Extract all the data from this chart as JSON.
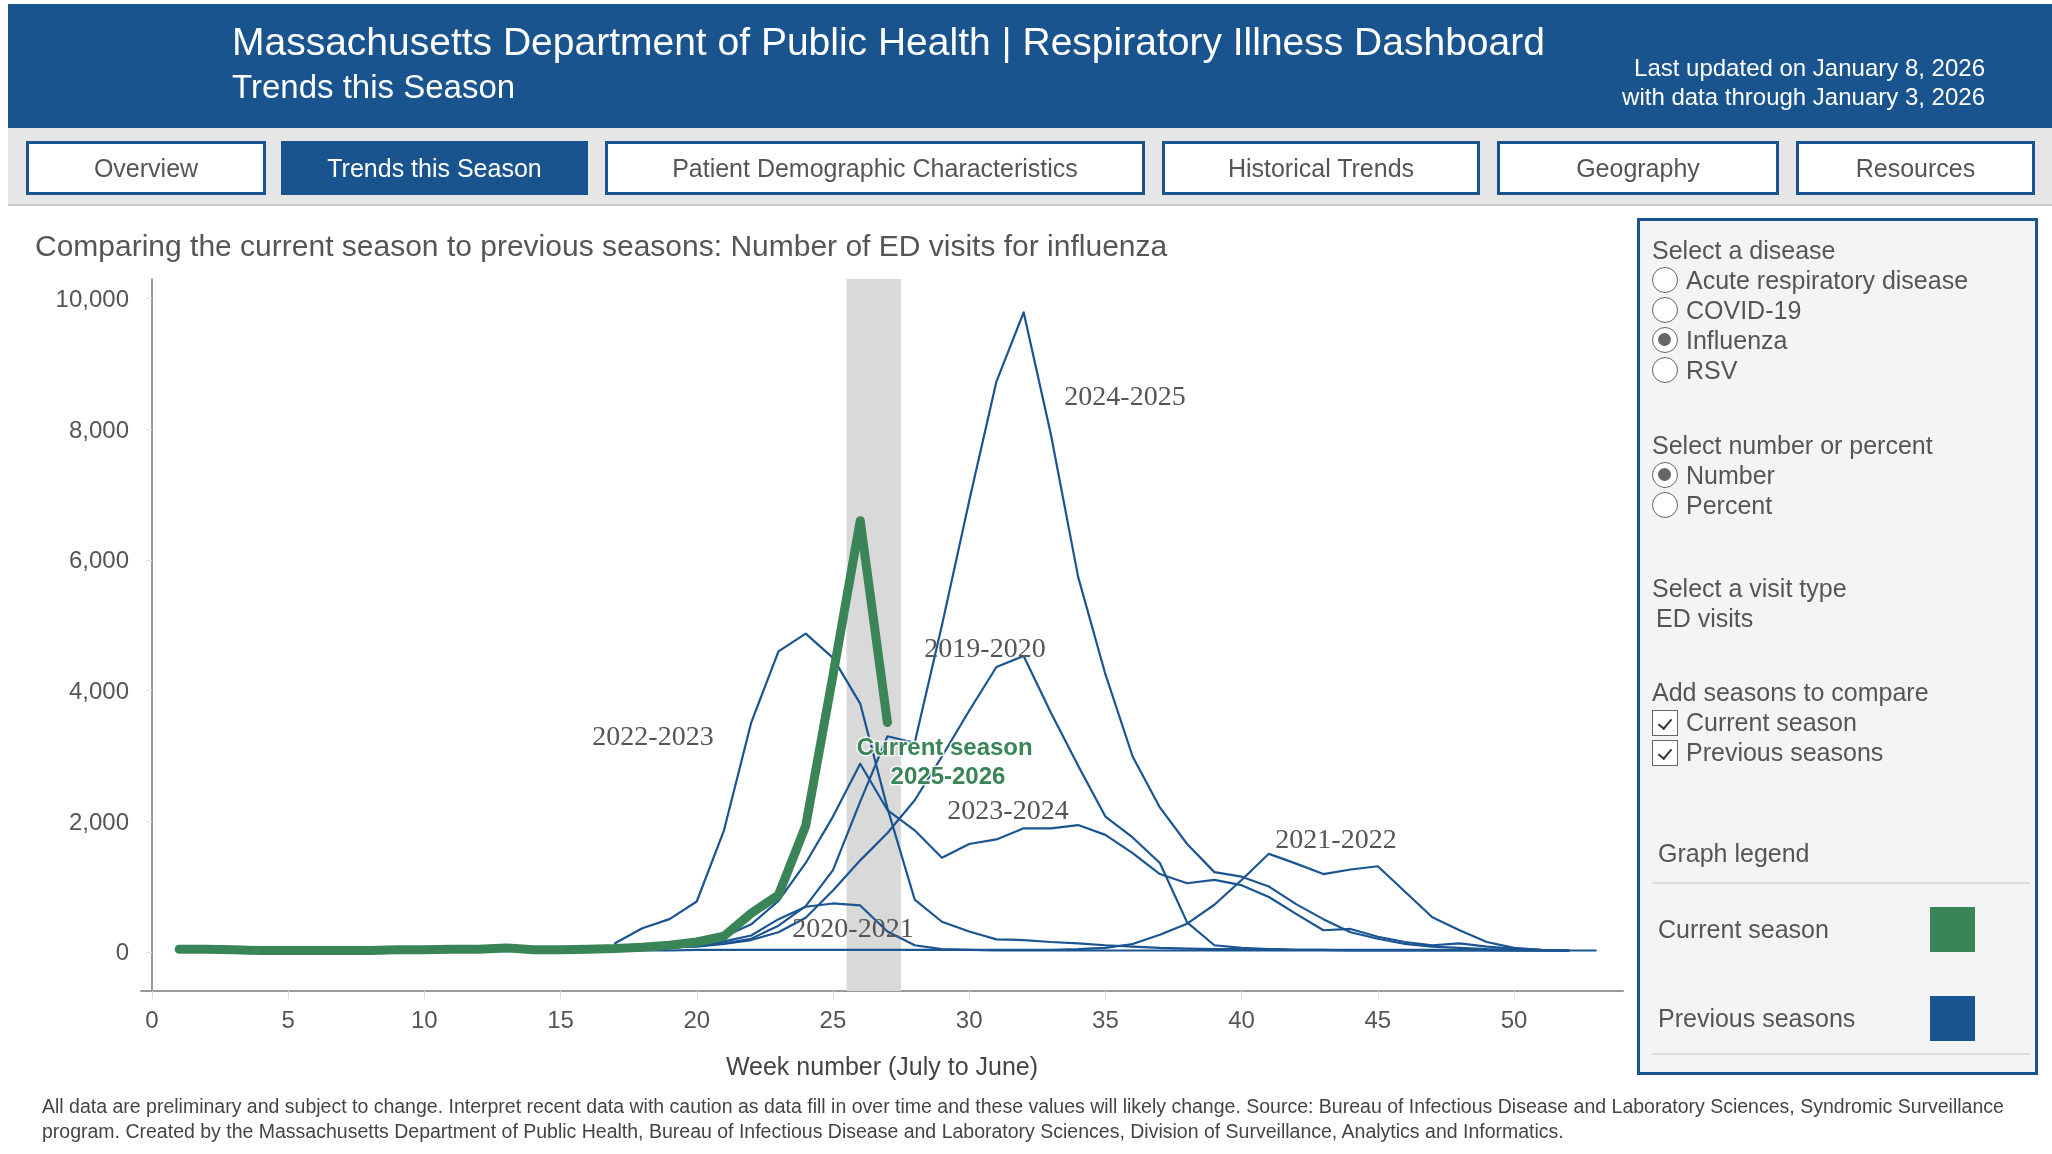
{
  "chart_data": [
    {
      "type": "other",
      "title": "Massachusetts Department of Public Health | Respiratory Illness Dashboard",
      "subtitle": "Trends this Season",
      "annotations": [
        "Last updated on January 8, 2026",
        "with data through January 3, 2026"
      ],
      "categories": [
        "Overview",
        "Trends this Season",
        "Patient Demographic Characteristics",
        "Historical Trends",
        "Geography",
        "Resources"
      ]
    },
    {
      "type": "line",
      "title": "Comparing the current season to previous seasons: Number of ED visits for influenza",
      "xlabel": "Week number (July to June)",
      "marker": "none",
      "line_style": "solid",
      "x": [
        1,
        2,
        3,
        4,
        5,
        6,
        7,
        8,
        9,
        10,
        11,
        12,
        13,
        14,
        15,
        16,
        17,
        18,
        19,
        20,
        21,
        22,
        23,
        24,
        25,
        26,
        27,
        28,
        29,
        30,
        31,
        32,
        33,
        34,
        35,
        36,
        37,
        38,
        39,
        40,
        41,
        42,
        43,
        44,
        45,
        46,
        47,
        48,
        49,
        50,
        51,
        52,
        53
      ],
      "series": [
        {
          "name": "2019-2020",
          "color": "#1a5592",
          "values": [
            null,
            null,
            null,
            null,
            null,
            null,
            null,
            null,
            null,
            null,
            null,
            null,
            null,
            null,
            null,
            null,
            50,
            60,
            70,
            80,
            120,
            180,
            300,
            520,
            940,
            1400,
            1820,
            2320,
            2990,
            3690,
            4360,
            4530,
            3660,
            2850,
            2070,
            1750,
            1360,
            450,
            100,
            60,
            40,
            30,
            30,
            20,
            20,
            20,
            20,
            20,
            20,
            20,
            20,
            20,
            null
          ]
        },
        {
          "name": "2020-2021",
          "color": "#1a5592",
          "values": [
            null,
            null,
            null,
            null,
            null,
            null,
            null,
            null,
            null,
            null,
            null,
            null,
            null,
            null,
            null,
            null,
            20,
            20,
            20,
            30,
            30,
            30,
            30,
            30,
            30,
            30,
            30,
            30,
            30,
            30,
            20,
            20,
            20,
            20,
            20,
            20,
            20,
            20,
            20,
            20,
            20,
            20,
            20,
            20,
            20,
            20,
            20,
            20,
            20,
            20,
            20,
            20,
            20
          ]
        },
        {
          "name": "2021-2022",
          "color": "#1a5592",
          "values": [
            null,
            null,
            null,
            null,
            null,
            null,
            null,
            null,
            null,
            null,
            null,
            null,
            null,
            null,
            null,
            null,
            30,
            40,
            60,
            100,
            160,
            250,
            500,
            690,
            740,
            710,
            310,
            100,
            40,
            30,
            30,
            30,
            30,
            40,
            60,
            120,
            260,
            430,
            720,
            1100,
            1500,
            1350,
            1190,
            1260,
            1310,
            920,
            530,
            330,
            150,
            60,
            30,
            20,
            null
          ]
        },
        {
          "name": "2022-2023",
          "color": "#1a5592",
          "values": [
            null,
            null,
            null,
            null,
            null,
            null,
            null,
            null,
            null,
            null,
            null,
            null,
            null,
            null,
            null,
            null,
            130,
            360,
            500,
            770,
            1860,
            3510,
            4600,
            4870,
            4500,
            3800,
            2200,
            800,
            460,
            310,
            190,
            180,
            150,
            130,
            100,
            80,
            60,
            50,
            40,
            40,
            40,
            30,
            30,
            30,
            30,
            30,
            30,
            30,
            30,
            20,
            20,
            20,
            null
          ]
        },
        {
          "name": "2023-2024",
          "color": "#1a5592",
          "values": [
            null,
            null,
            null,
            null,
            null,
            null,
            null,
            null,
            null,
            null,
            null,
            null,
            null,
            null,
            null,
            null,
            30,
            60,
            100,
            150,
            230,
            420,
            780,
            1360,
            2070,
            2880,
            2170,
            1860,
            1440,
            1650,
            1720,
            1890,
            1890,
            1940,
            1790,
            1510,
            1190,
            1050,
            1100,
            1020,
            840,
            580,
            330,
            350,
            230,
            150,
            100,
            130,
            80,
            50,
            30,
            20,
            null
          ]
        },
        {
          "name": "2024-2025",
          "color": "#1a5592",
          "values": [
            null,
            null,
            null,
            null,
            null,
            null,
            null,
            null,
            null,
            null,
            null,
            null,
            null,
            null,
            null,
            null,
            30,
            40,
            60,
            90,
            130,
            200,
            400,
            700,
            1250,
            2300,
            3300,
            3200,
            5000,
            6900,
            8730,
            9790,
            7920,
            5740,
            4250,
            2990,
            2210,
            1650,
            1220,
            1150,
            1000,
            730,
            500,
            300,
            200,
            120,
            80,
            60,
            40,
            30,
            20,
            20,
            null
          ]
        },
        {
          "name": "Current season 2025-2026",
          "color": "#3a8558",
          "values": [
            40,
            40,
            30,
            20,
            20,
            20,
            20,
            20,
            30,
            30,
            40,
            40,
            60,
            30,
            30,
            40,
            50,
            70,
            100,
            150,
            240,
            590,
            870,
            1930,
            4230,
            6600,
            3510,
            null,
            null,
            null,
            null,
            null,
            null,
            null,
            null,
            null,
            null,
            null,
            null,
            null,
            null,
            null,
            null,
            null,
            null,
            null,
            null,
            null,
            null,
            null,
            null,
            null,
            null
          ]
        }
      ],
      "xlim": [
        -0.4,
        54
      ],
      "xticks": [
        0,
        5,
        10,
        15,
        20,
        25,
        30,
        35,
        40,
        45,
        50
      ],
      "ylim": [
        -600,
        10300
      ],
      "yticks": [
        {
          "value": 0,
          "label": "0"
        },
        {
          "value": 2000,
          "label": "2,000"
        },
        {
          "value": 4000,
          "label": "4,000"
        },
        {
          "value": 6000,
          "label": "6,000"
        },
        {
          "value": 8000,
          "label": "8,000"
        },
        {
          "value": 10000,
          "label": "10,000"
        }
      ],
      "bands": [
        {
          "axis": "x",
          "from": 25.5,
          "to": 27.5,
          "color": "#d9d9d9"
        }
      ],
      "annotations": [
        "All data are preliminary and subject to change. Interpret recent data with caution as data fill in over time and these values will likely change. Source: Bureau of Infectious Disease and Laboratory Sciences, Syndromic Surveillance program. Created by the Massachusetts Department of Public Health, Bureau of Infectious Disease and Laboratory Sciences, Division of Surveillance, Analytics and Informatics."
      ]
    },
    {
      "type": "other",
      "annotations": [
        "Select a disease",
        "Acute respiratory disease",
        "COVID-19",
        "Influenza",
        "RSV",
        "Select number or percent",
        "Number",
        "Percent",
        "Select a visit type",
        "ED visits",
        "Add seasons to compare",
        "Current season",
        "Previous seasons",
        "Graph legend",
        "Current season",
        "Previous seasons"
      ]
    }
  ]
}
